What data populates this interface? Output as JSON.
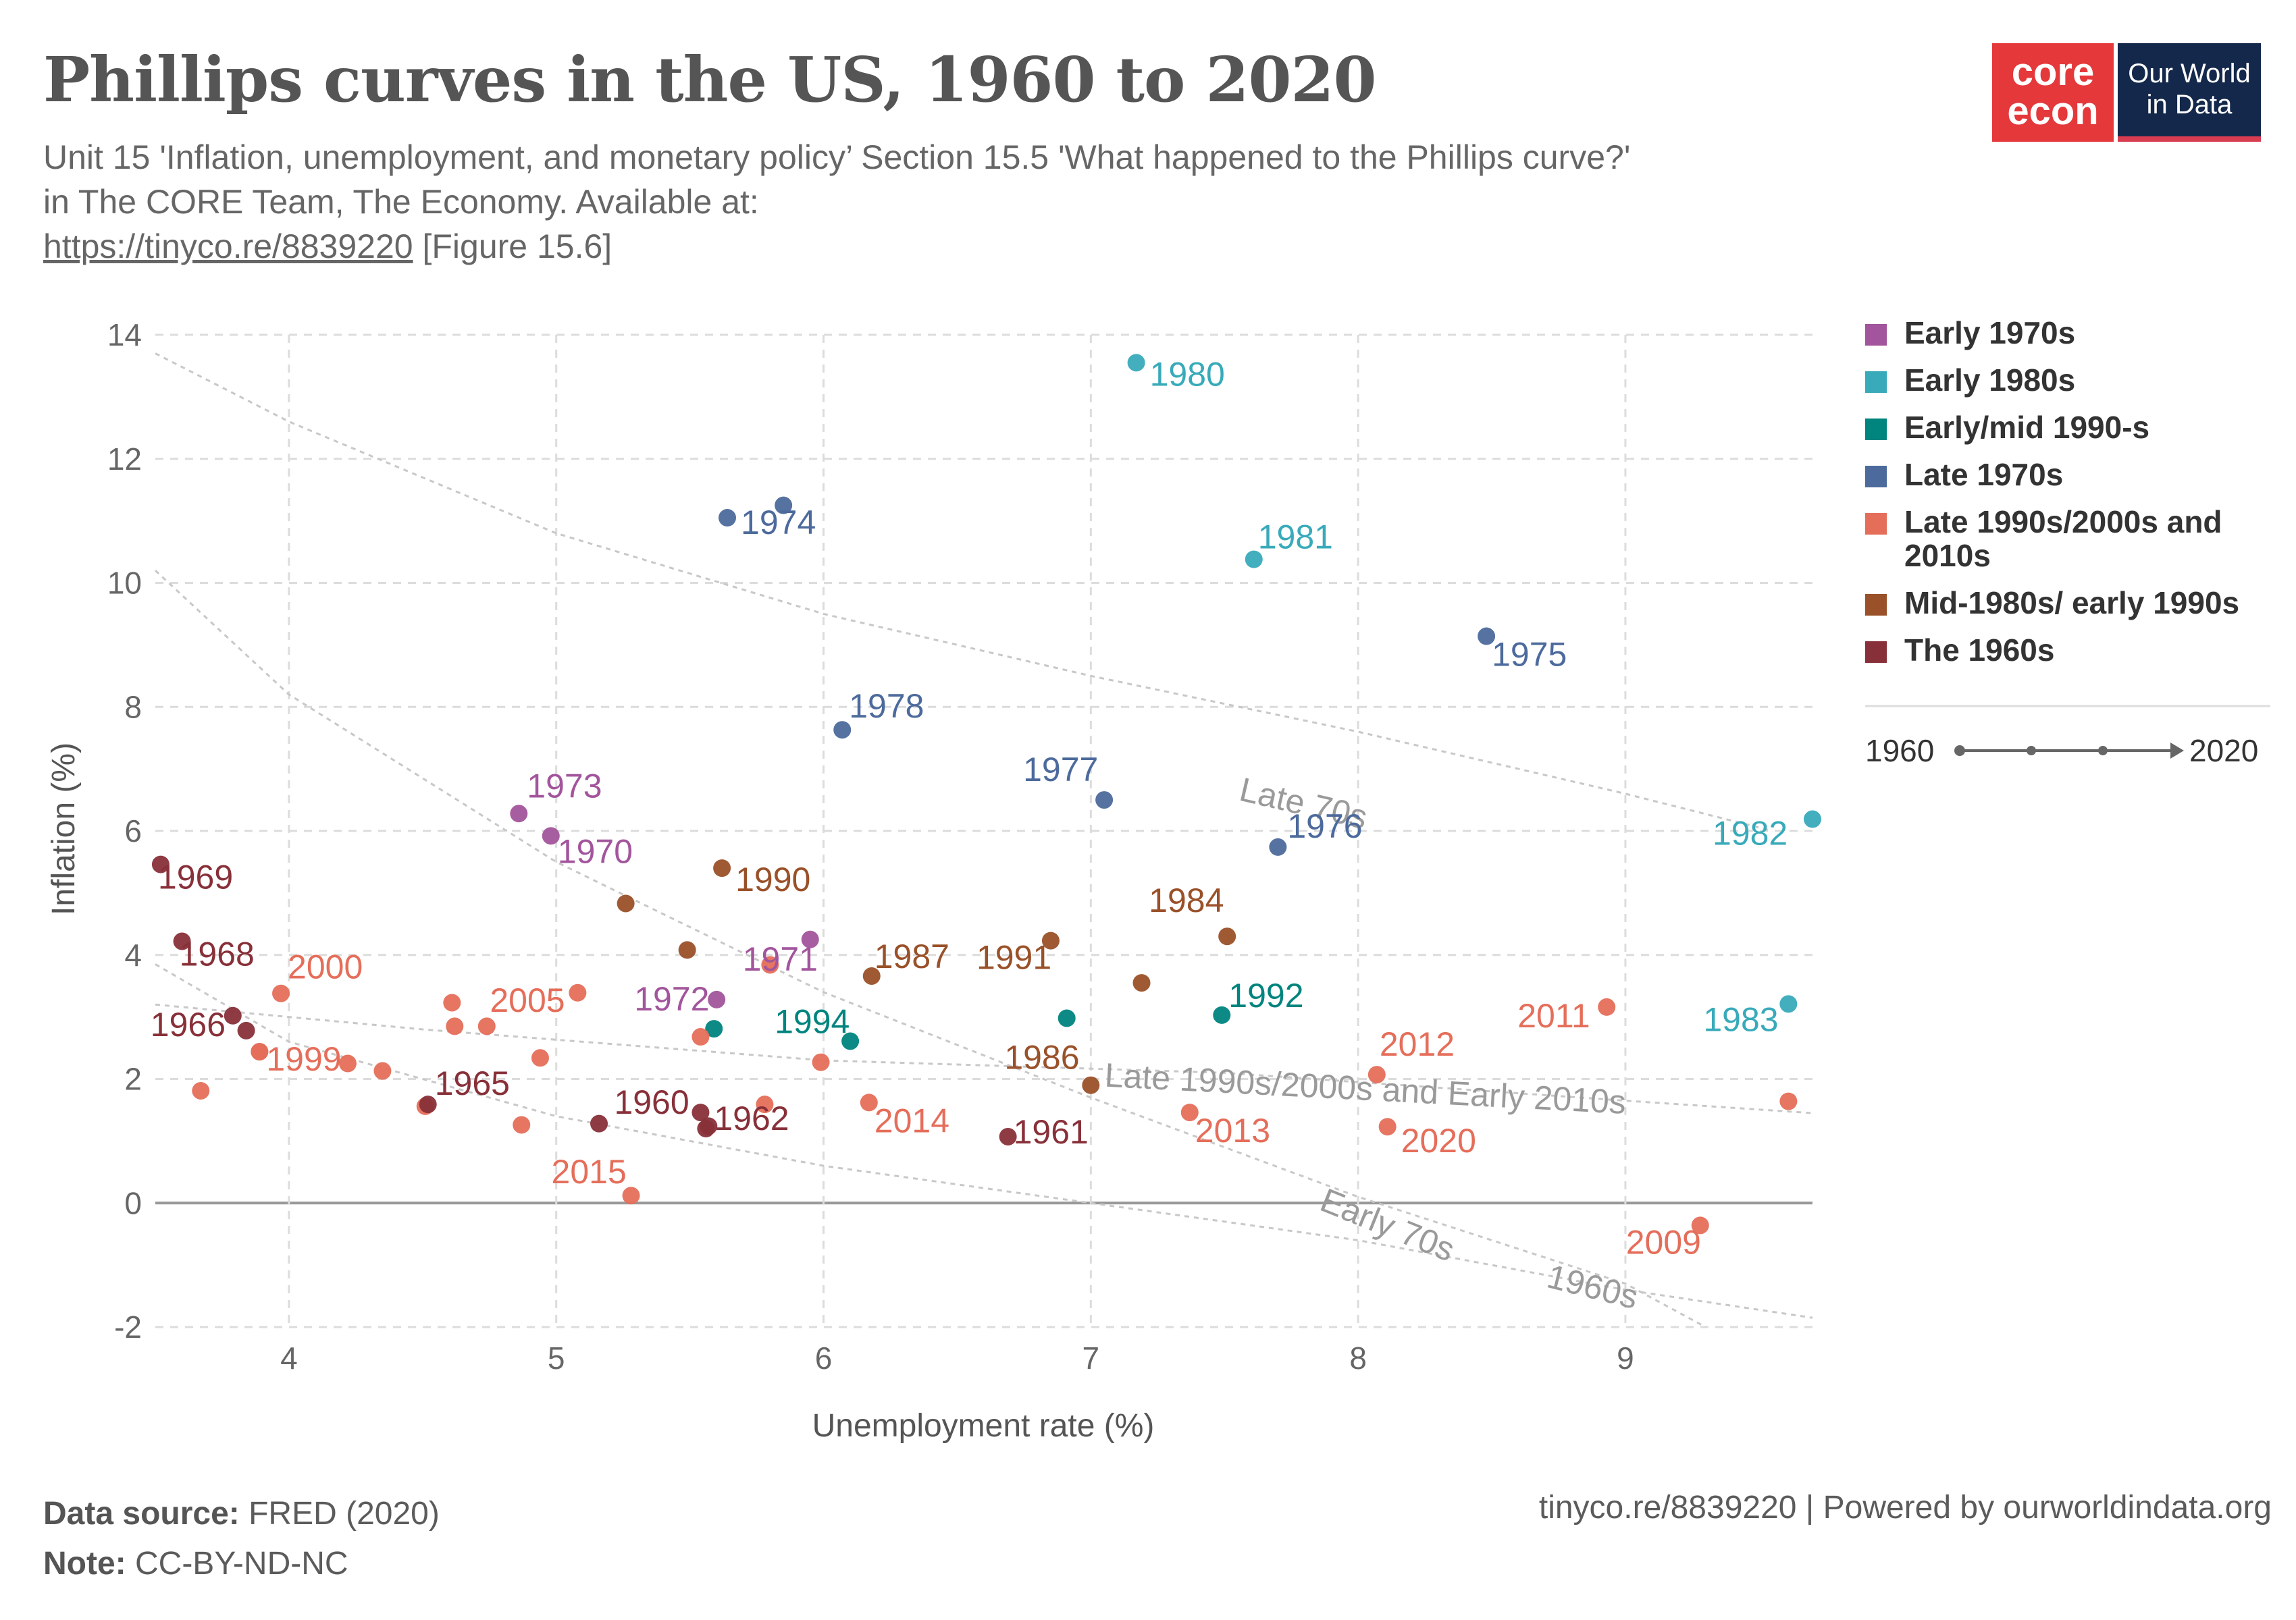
{
  "header": {
    "title": "Phillips curves in the US, 1960 to 2020",
    "subtitle_line1": "Unit 15 'Inflation, unemployment, and monetary policy’ Section 15.5 'What happened to the Phillips curve?'",
    "subtitle_line2": "in The CORE Team, The Economy. Available at:",
    "subtitle_link": "https://tinyco.re/8839220",
    "subtitle_suffix": " [Figure 15.6]"
  },
  "logos": {
    "core_line1": "core",
    "core_line2": "econ",
    "owid_line1": "Our World",
    "owid_line2": "in Data"
  },
  "footer": {
    "source_label": "Data source:",
    "source_value": " FRED (2020)",
    "note_label": "Note:",
    "note_value": " CC-BY-ND-NC",
    "right_text": "tinyco.re/8839220 | Powered by ourworldindata.org"
  },
  "timeline": {
    "start": "1960",
    "end": "2020"
  },
  "colors": {
    "early70s": "#a2559c",
    "early80s": "#38aaba",
    "early90s": "#00847e",
    "late70s": "#4c6a9c",
    "late90s": "#e56e5a",
    "mid80s": "#9a5129",
    "sixties": "#883039"
  },
  "chart_data": {
    "type": "scatter",
    "xlabel": "Unemployment rate (%)",
    "ylabel": "Inflation (%)",
    "xlim": [
      3.5,
      9.7
    ],
    "ylim": [
      -2,
      14
    ],
    "xticks": [
      4,
      5,
      6,
      7,
      8,
      9
    ],
    "yticks": [
      -2,
      0,
      2,
      4,
      6,
      8,
      10,
      12,
      14
    ],
    "grid": true,
    "legend_position": "right",
    "series": [
      {
        "name": "Early 1970s",
        "key": "early70s",
        "points": [
          {
            "x": 4.86,
            "y": 6.28,
            "label": "1973"
          },
          {
            "x": 4.98,
            "y": 5.92,
            "label": "1970"
          },
          {
            "x": 5.95,
            "y": 4.25,
            "label": "1971"
          },
          {
            "x": 5.6,
            "y": 3.28,
            "label": "1972"
          }
        ]
      },
      {
        "name": "Early 1980s",
        "key": "early80s",
        "points": [
          {
            "x": 7.17,
            "y": 13.55,
            "label": "1980"
          },
          {
            "x": 7.61,
            "y": 10.38,
            "label": "1981"
          },
          {
            "x": 9.7,
            "y": 6.19,
            "label": "1982"
          },
          {
            "x": 9.61,
            "y": 3.21,
            "label": "1983"
          }
        ]
      },
      {
        "name": "Early/mid 1990-s",
        "key": "early90s",
        "points": [
          {
            "x": 7.49,
            "y": 3.03,
            "label": "1992"
          },
          {
            "x": 6.91,
            "y": 2.98,
            "label": ""
          },
          {
            "x": 6.1,
            "y": 2.61,
            "label": "1994"
          },
          {
            "x": 5.59,
            "y": 2.81,
            "label": ""
          }
        ]
      },
      {
        "name": "Late 1970s",
        "key": "late70s",
        "points": [
          {
            "x": 5.64,
            "y": 11.05,
            "label": "1974"
          },
          {
            "x": 8.48,
            "y": 9.14,
            "label": "1975"
          },
          {
            "x": 7.7,
            "y": 5.74,
            "label": "1976"
          },
          {
            "x": 7.05,
            "y": 6.5,
            "label": "1977"
          },
          {
            "x": 6.07,
            "y": 7.63,
            "label": "1978"
          },
          {
            "x": 5.85,
            "y": 11.25,
            "label": ""
          }
        ]
      },
      {
        "name": "Late 1990s/2000s and 2010s",
        "key": "late90s",
        "points": [
          {
            "x": 4.22,
            "y": 2.25,
            "label": ""
          },
          {
            "x": 3.89,
            "y": 2.44,
            "label": "1999"
          },
          {
            "x": 3.97,
            "y": 3.38,
            "label": "2000"
          },
          {
            "x": 4.74,
            "y": 2.85,
            "label": ""
          },
          {
            "x": 5.78,
            "y": 1.59,
            "label": ""
          },
          {
            "x": 5.99,
            "y": 2.27,
            "label": ""
          },
          {
            "x": 5.54,
            "y": 2.68,
            "label": ""
          },
          {
            "x": 5.08,
            "y": 3.39,
            "label": "2005"
          },
          {
            "x": 4.61,
            "y": 3.23,
            "label": ""
          },
          {
            "x": 4.62,
            "y": 2.85,
            "label": ""
          },
          {
            "x": 5.8,
            "y": 3.84,
            "label": ""
          },
          {
            "x": 9.28,
            "y": -0.36,
            "label": "2009"
          },
          {
            "x": 9.61,
            "y": 1.64,
            "label": ""
          },
          {
            "x": 8.93,
            "y": 3.16,
            "label": "2011"
          },
          {
            "x": 8.07,
            "y": 2.07,
            "label": "2012"
          },
          {
            "x": 7.37,
            "y": 1.46,
            "label": "2013"
          },
          {
            "x": 6.17,
            "y": 1.62,
            "label": "2014"
          },
          {
            "x": 5.28,
            "y": 0.12,
            "label": "2015"
          },
          {
            "x": 4.87,
            "y": 1.26,
            "label": ""
          },
          {
            "x": 4.35,
            "y": 2.13,
            "label": ""
          },
          {
            "x": 3.89,
            "y": 2.44,
            "label": ""
          },
          {
            "x": 3.67,
            "y": 1.81,
            "label": ""
          },
          {
            "x": 8.11,
            "y": 1.23,
            "label": "2020"
          },
          {
            "x": 4.51,
            "y": 1.56,
            "label": ""
          },
          {
            "x": 4.94,
            "y": 2.34,
            "label": ""
          }
        ]
      },
      {
        "name": "Mid-1980s/ early 1990s",
        "key": "mid80s",
        "points": [
          {
            "x": 7.51,
            "y": 4.3,
            "label": "1984"
          },
          {
            "x": 7.19,
            "y": 3.55,
            "label": ""
          },
          {
            "x": 7.0,
            "y": 1.9,
            "label": "1986"
          },
          {
            "x": 6.18,
            "y": 3.66,
            "label": "1987"
          },
          {
            "x": 5.49,
            "y": 4.08,
            "label": ""
          },
          {
            "x": 5.26,
            "y": 4.83,
            "label": ""
          },
          {
            "x": 5.62,
            "y": 5.4,
            "label": "1990"
          },
          {
            "x": 6.85,
            "y": 4.23,
            "label": "1991"
          }
        ]
      },
      {
        "name": "The 1960s",
        "key": "sixties",
        "points": [
          {
            "x": 5.54,
            "y": 1.46,
            "label": "1960"
          },
          {
            "x": 6.69,
            "y": 1.07,
            "label": "1961"
          },
          {
            "x": 5.56,
            "y": 1.2,
            "label": "1962"
          },
          {
            "x": 5.57,
            "y": 1.24,
            "label": ""
          },
          {
            "x": 5.16,
            "y": 1.28,
            "label": ""
          },
          {
            "x": 4.52,
            "y": 1.59,
            "label": "1965"
          },
          {
            "x": 3.79,
            "y": 3.02,
            "label": "1966"
          },
          {
            "x": 3.84,
            "y": 2.78,
            "label": ""
          },
          {
            "x": 3.6,
            "y": 4.22,
            "label": "1968"
          },
          {
            "x": 3.52,
            "y": 5.46,
            "label": "1969"
          }
        ]
      }
    ],
    "curves": [
      {
        "label": "Late 70s",
        "points": [
          [
            3.5,
            13.7
          ],
          [
            4.0,
            12.6
          ],
          [
            5.0,
            10.8
          ],
          [
            6.0,
            9.5
          ],
          [
            7.0,
            8.5
          ],
          [
            8.0,
            7.6
          ],
          [
            9.0,
            6.6
          ],
          [
            9.55,
            6.0
          ]
        ]
      },
      {
        "label": "Early 70s",
        "points": [
          [
            3.5,
            10.2
          ],
          [
            4.0,
            8.2
          ],
          [
            5.0,
            5.5
          ],
          [
            6.0,
            3.4
          ],
          [
            7.0,
            1.7
          ],
          [
            8.0,
            0.1
          ],
          [
            9.0,
            -1.3
          ],
          [
            9.3,
            -2.0
          ]
        ]
      },
      {
        "label": "Late 1990s/2000s and Early 2010s",
        "points": [
          [
            3.5,
            3.2
          ],
          [
            4.5,
            2.8
          ],
          [
            6.0,
            2.3
          ],
          [
            7.5,
            2.1
          ],
          [
            9.0,
            1.65
          ],
          [
            9.7,
            1.45
          ]
        ]
      },
      {
        "label": "1960s",
        "points": [
          [
            3.5,
            3.85
          ],
          [
            4.0,
            2.6
          ],
          [
            5.0,
            1.4
          ],
          [
            6.0,
            0.6
          ],
          [
            7.0,
            0.0
          ],
          [
            8.0,
            -0.6
          ],
          [
            9.0,
            -1.4
          ],
          [
            9.7,
            -1.85
          ]
        ]
      }
    ]
  }
}
